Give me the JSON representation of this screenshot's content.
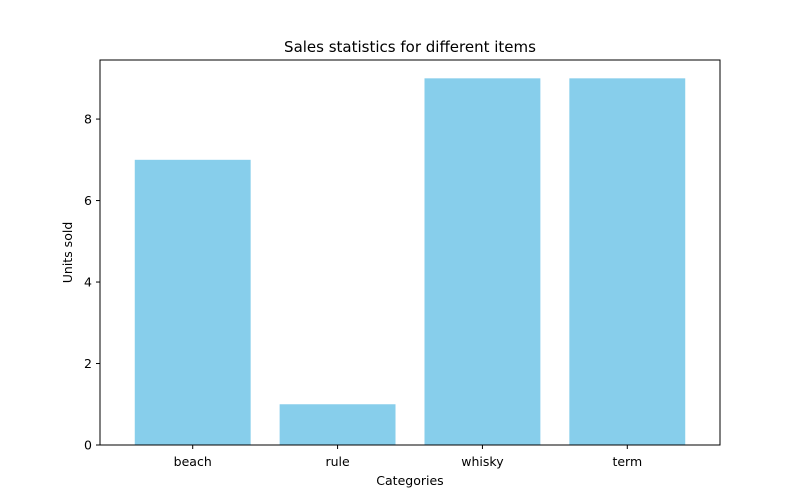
{
  "chart_data": {
    "type": "bar",
    "title": "Sales statistics for different items",
    "xlabel": "Categories",
    "ylabel": "Units sold",
    "categories": [
      "beach",
      "rule",
      "whisky",
      "term"
    ],
    "values": [
      7,
      1,
      9,
      9
    ],
    "ylim": [
      0,
      9.45
    ],
    "yticks": [
      0,
      2,
      4,
      6,
      8
    ],
    "bar_color": "#87ceeb",
    "grid": false,
    "legend": "none"
  }
}
